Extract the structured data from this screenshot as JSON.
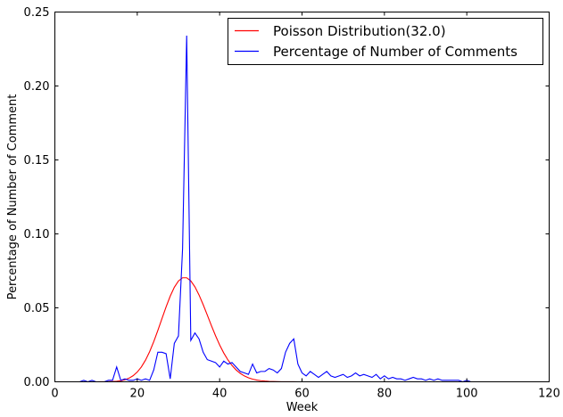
{
  "chart_data": {
    "type": "line",
    "title": "",
    "xlabel": "Week",
    "ylabel": "Percentage of Number of Comment",
    "xlim": [
      0,
      120
    ],
    "ylim": [
      0,
      0.25
    ],
    "xticks": [
      0,
      20,
      40,
      60,
      80,
      100,
      120
    ],
    "xtick_labels": [
      "0",
      "20",
      "40",
      "60",
      "80",
      "100",
      "120"
    ],
    "yticks": [
      0,
      0.05,
      0.1,
      0.15,
      0.2,
      0.25
    ],
    "ytick_labels": [
      "0.00",
      "0.05",
      "0.10",
      "0.15",
      "0.20",
      "0.25"
    ],
    "grid": false,
    "legend_position": "top-right",
    "series": [
      {
        "name": "Poisson Distribution(32.0)",
        "color": "#ff0000",
        "lambda": 32.0,
        "x_range": [
          0,
          103
        ]
      },
      {
        "name": "Percentage of Number of Comments",
        "color": "#0000ff",
        "x": [
          0,
          1,
          2,
          3,
          4,
          5,
          6,
          7,
          8,
          9,
          10,
          11,
          12,
          13,
          14,
          15,
          16,
          17,
          18,
          19,
          20,
          21,
          22,
          23,
          24,
          25,
          26,
          27,
          28,
          29,
          30,
          31,
          32,
          33,
          34,
          35,
          36,
          37,
          38,
          39,
          40,
          41,
          42,
          43,
          44,
          45,
          46,
          47,
          48,
          49,
          50,
          51,
          52,
          53,
          54,
          55,
          56,
          57,
          58,
          59,
          60,
          61,
          62,
          63,
          64,
          65,
          66,
          67,
          68,
          69,
          70,
          71,
          72,
          73,
          74,
          75,
          76,
          77,
          78,
          79,
          80,
          81,
          82,
          83,
          84,
          85,
          86,
          87,
          88,
          89,
          90,
          91,
          92,
          93,
          94,
          95,
          96,
          97,
          98,
          99,
          100,
          101,
          102,
          103
        ],
        "y": [
          0,
          0,
          0,
          0,
          0,
          0,
          0,
          0.001,
          0,
          0.001,
          0,
          0,
          0,
          0.001,
          0.001,
          0.01,
          0.001,
          0.002,
          0.001,
          0.001,
          0.002,
          0.001,
          0.002,
          0.001,
          0.008,
          0.02,
          0.02,
          0.019,
          0.002,
          0.026,
          0.031,
          0.09,
          0.234,
          0.028,
          0.033,
          0.029,
          0.02,
          0.015,
          0.014,
          0.013,
          0.01,
          0.014,
          0.012,
          0.013,
          0.01,
          0.007,
          0.006,
          0.005,
          0.012,
          0.006,
          0.007,
          0.007,
          0.009,
          0.008,
          0.006,
          0.009,
          0.02,
          0.026,
          0.029,
          0.012,
          0.006,
          0.004,
          0.007,
          0.005,
          0.003,
          0.005,
          0.007,
          0.004,
          0.003,
          0.004,
          0.005,
          0.003,
          0.004,
          0.006,
          0.004,
          0.005,
          0.004,
          0.003,
          0.005,
          0.002,
          0.004,
          0.002,
          0.003,
          0.002,
          0.002,
          0.001,
          0.002,
          0.003,
          0.002,
          0.002,
          0.001,
          0.002,
          0.001,
          0.002,
          0.001,
          0.001,
          0.001,
          0.001,
          0.001,
          0,
          0.001,
          0,
          0,
          0
        ]
      }
    ]
  }
}
